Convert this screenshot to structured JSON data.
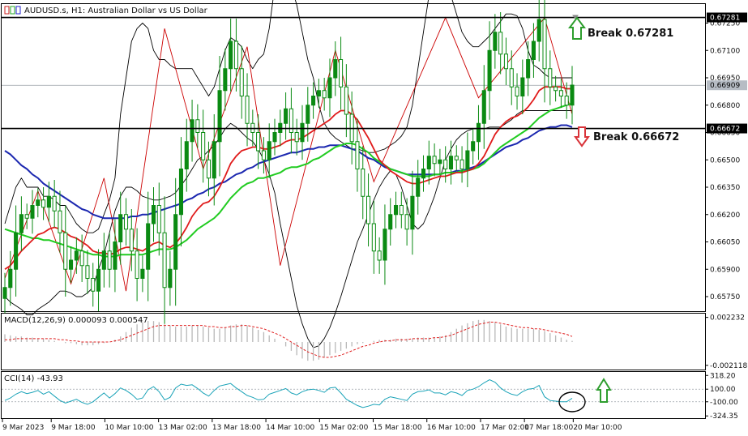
{
  "chart_data": {
    "type": "candlestick",
    "title": "AUDUSD.s, H1: Australian Dollar vs US Dollar",
    "main": {
      "ylim": [
        0.6567,
        0.6735
      ],
      "y_ticks": [
        "0.67250",
        "0.67100",
        "0.66950",
        "0.66800",
        "0.66650",
        "0.66500",
        "0.66350",
        "0.66200",
        "0.66050",
        "0.65900",
        "0.65750"
      ],
      "price_markers": [
        {
          "label": "0.67281",
          "value": 0.67281,
          "style": "line"
        },
        {
          "label": "0.66909",
          "value": 0.66909,
          "style": "current"
        },
        {
          "label": "0.66672",
          "value": 0.66672,
          "style": "line"
        }
      ],
      "annotations": [
        {
          "text": "Break 0.67281",
          "direction": "up",
          "color": "#2e9e2e"
        },
        {
          "text": "Break 0.66672",
          "direction": "down",
          "color": "#d9343a"
        }
      ],
      "close": [
        0.658,
        0.659,
        0.661,
        0.662,
        0.6618,
        0.6625,
        0.6628,
        0.6624,
        0.663,
        0.6622,
        0.661,
        0.659,
        0.6595,
        0.66,
        0.6592,
        0.6585,
        0.6578,
        0.659,
        0.66,
        0.659,
        0.6605,
        0.662,
        0.6612,
        0.66,
        0.6585,
        0.659,
        0.6615,
        0.6625,
        0.661,
        0.658,
        0.659,
        0.662,
        0.6645,
        0.666,
        0.6672,
        0.6665,
        0.665,
        0.664,
        0.666,
        0.6688,
        0.67,
        0.6715,
        0.67,
        0.6685,
        0.667,
        0.6665,
        0.6655,
        0.665,
        0.666,
        0.6665,
        0.667,
        0.6678,
        0.6665,
        0.666,
        0.667,
        0.668,
        0.6685,
        0.6688,
        0.6684,
        0.6695,
        0.6705,
        0.669,
        0.6675,
        0.666,
        0.6645,
        0.663,
        0.6615,
        0.66,
        0.6595,
        0.6612,
        0.662,
        0.6625,
        0.662,
        0.6612,
        0.663,
        0.664,
        0.6645,
        0.6652,
        0.6648,
        0.665,
        0.6645,
        0.6652,
        0.665,
        0.6645,
        0.6655,
        0.666,
        0.667,
        0.6688,
        0.671,
        0.672,
        0.6708,
        0.67,
        0.669,
        0.6685,
        0.6695,
        0.6705,
        0.6715,
        0.6727,
        0.67,
        0.669,
        0.6688,
        0.6685,
        0.668,
        0.6691
      ],
      "ema_red": [
        0.659,
        0.6592,
        0.6596,
        0.66,
        0.6603,
        0.6606,
        0.6609,
        0.661,
        0.6612,
        0.6613,
        0.6612,
        0.661,
        0.6608,
        0.6607,
        0.6605,
        0.6603,
        0.66,
        0.6599,
        0.6599,
        0.6598,
        0.6599,
        0.6601,
        0.6602,
        0.6602,
        0.6601,
        0.66,
        0.6602,
        0.6604,
        0.6605,
        0.6603,
        0.6602,
        0.6604,
        0.6608,
        0.6613,
        0.6619,
        0.6623,
        0.6626,
        0.6627,
        0.663,
        0.6635,
        0.6641,
        0.6648,
        0.6652,
        0.6655,
        0.6656,
        0.6657,
        0.6657,
        0.6656,
        0.6656,
        0.6657,
        0.6658,
        0.666,
        0.6661,
        0.6661,
        0.6662,
        0.6664,
        0.6666,
        0.6668,
        0.667,
        0.6672,
        0.6675,
        0.6677,
        0.6677,
        0.6675,
        0.6672,
        0.6667,
        0.6662,
        0.6656,
        0.665,
        0.6647,
        0.6644,
        0.6642,
        0.664,
        0.6638,
        0.6637,
        0.6637,
        0.6638,
        0.6639,
        0.664,
        0.6641,
        0.6641,
        0.6642,
        0.6643,
        0.6643,
        0.6644,
        0.6645,
        0.6648,
        0.6652,
        0.6658,
        0.6664,
        0.6668,
        0.6671,
        0.6673,
        0.6674,
        0.6676,
        0.6679,
        0.6683,
        0.6688,
        0.669,
        0.669,
        0.669,
        0.669,
        0.6689,
        0.6689
      ],
      "ema_green": [
        0.6612,
        0.6611,
        0.661,
        0.6609,
        0.6608,
        0.6607,
        0.6607,
        0.6606,
        0.6606,
        0.6605,
        0.6604,
        0.6603,
        0.6602,
        0.6601,
        0.66,
        0.6599,
        0.6598,
        0.6598,
        0.6597,
        0.6597,
        0.6597,
        0.6598,
        0.6598,
        0.6598,
        0.6598,
        0.6598,
        0.6599,
        0.66,
        0.6601,
        0.6601,
        0.6601,
        0.6602,
        0.6604,
        0.6606,
        0.6609,
        0.6612,
        0.6614,
        0.6616,
        0.6618,
        0.6621,
        0.6625,
        0.6629,
        0.6632,
        0.6635,
        0.6637,
        0.6638,
        0.664,
        0.664,
        0.6641,
        0.6642,
        0.6643,
        0.6645,
        0.6646,
        0.6646,
        0.6647,
        0.6648,
        0.665,
        0.6651,
        0.6653,
        0.6655,
        0.6657,
        0.6658,
        0.6659,
        0.6659,
        0.6658,
        0.6656,
        0.6654,
        0.6651,
        0.6649,
        0.6647,
        0.6645,
        0.6644,
        0.6643,
        0.6642,
        0.6641,
        0.6641,
        0.6641,
        0.6641,
        0.6642,
        0.6642,
        0.6643,
        0.6643,
        0.6643,
        0.6644,
        0.6644,
        0.6645,
        0.6646,
        0.6648,
        0.6651,
        0.6654,
        0.6657,
        0.6659,
        0.6661,
        0.6663,
        0.6665,
        0.6667,
        0.667,
        0.6673,
        0.6675,
        0.6677,
        0.6678,
        0.6679,
        0.668,
        0.6681
      ],
      "ema_blue": [
        0.6655,
        0.6653,
        0.665,
        0.6647,
        0.6645,
        0.6642,
        0.664,
        0.6637,
        0.6635,
        0.6633,
        0.6631,
        0.6629,
        0.6627,
        0.6625,
        0.6623,
        0.6622,
        0.662,
        0.6619,
        0.6618,
        0.6618,
        0.6618,
        0.6618,
        0.6618,
        0.6619,
        0.6619,
        0.662,
        0.662,
        0.6621,
        0.6622,
        0.6623,
        0.6624,
        0.6625,
        0.6626,
        0.6628,
        0.6629,
        0.6631,
        0.6632,
        0.6634,
        0.6635,
        0.6637,
        0.6638,
        0.664,
        0.6642,
        0.6643,
        0.6645,
        0.6646,
        0.6648,
        0.6649,
        0.665,
        0.6651,
        0.6652,
        0.6653,
        0.6654,
        0.6654,
        0.6655,
        0.6656,
        0.6656,
        0.6657,
        0.6657,
        0.6658,
        0.6658,
        0.6658,
        0.6657,
        0.6656,
        0.6655,
        0.6653,
        0.6651,
        0.665,
        0.6648,
        0.6646,
        0.6645,
        0.6644,
        0.6643,
        0.6642,
        0.6642,
        0.6642,
        0.6642,
        0.6642,
        0.6642,
        0.6642,
        0.6643,
        0.6643,
        0.6644,
        0.6644,
        0.6645,
        0.6646,
        0.6647,
        0.6649,
        0.6651,
        0.6653,
        0.6655,
        0.6657,
        0.6658,
        0.6659,
        0.6661,
        0.6662,
        0.6664,
        0.6666,
        0.6667,
        0.6668,
        0.6668,
        0.6669,
        0.6669,
        0.6668
      ],
      "bb_upper": [
        0.6615,
        0.6625,
        0.6635,
        0.664,
        0.6635,
        0.6635,
        0.6635,
        0.663,
        0.663,
        0.6628,
        0.6625,
        0.6625,
        0.662,
        0.6615,
        0.6612,
        0.661,
        0.661,
        0.6612,
        0.662,
        0.6628,
        0.664,
        0.6675,
        0.6695,
        0.6715,
        0.6722,
        0.6725,
        0.6722,
        0.671,
        0.6705,
        0.6705,
        0.6702,
        0.67,
        0.67,
        0.67,
        0.67,
        0.6695,
        0.669,
        0.6685,
        0.669,
        0.67,
        0.671,
        0.6717,
        0.6715,
        0.6712,
        0.6705,
        0.67,
        0.6705,
        0.6708,
        0.6722,
        0.6745,
        0.675,
        0.675,
        0.6745,
        0.6735,
        0.672,
        0.6705,
        0.6695,
        0.668,
        0.667,
        0.6665,
        0.6662,
        0.666,
        0.6658,
        0.6656,
        0.6656,
        0.6655,
        0.6654,
        0.6654,
        0.6655,
        0.6656,
        0.6658,
        0.666,
        0.6663,
        0.6668,
        0.668,
        0.67,
        0.672,
        0.674,
        0.675,
        0.6752,
        0.675,
        0.674,
        0.673,
        0.672,
        0.6715,
        0.6712,
        0.6712,
        0.6715,
        0.6718,
        0.6722,
        0.6726,
        0.673,
        0.673,
        0.6729,
        0.6722,
        0.671,
        0.6702,
        0.67,
        0.6697,
        0.6695,
        0.6695,
        0.6695,
        0.6695,
        0.6695
      ],
      "bb_lower": [
        0.6575,
        0.6572,
        0.657,
        0.6568,
        0.6565,
        0.6565,
        0.6568,
        0.657,
        0.6572,
        0.6575,
        0.6578,
        0.6578,
        0.6577,
        0.6575,
        0.6575,
        0.6577,
        0.658,
        0.659,
        0.6598,
        0.661,
        0.6622,
        0.663,
        0.6635,
        0.6635,
        0.6633,
        0.663,
        0.6629,
        0.6628,
        0.6628,
        0.6629,
        0.663,
        0.6632,
        0.6636,
        0.664,
        0.6645,
        0.665,
        0.6652,
        0.6655,
        0.6658,
        0.6662,
        0.6667,
        0.667,
        0.6668,
        0.6665,
        0.6662,
        0.666,
        0.6656,
        0.665,
        0.6642,
        0.6632,
        0.6615,
        0.66,
        0.6585,
        0.657,
        0.656,
        0.6552,
        0.6547,
        0.6548,
        0.6552,
        0.6558,
        0.6566,
        0.6575,
        0.6585,
        0.6595,
        0.6605,
        0.6612,
        0.662,
        0.6628,
        0.6635,
        0.664,
        0.6644,
        0.6642,
        0.6635,
        0.6625,
        0.6615,
        0.6612,
        0.6615,
        0.6622,
        0.663,
        0.664,
        0.665,
        0.6656,
        0.6661,
        0.6664,
        0.6666,
        0.6667,
        0.6667,
        0.6667,
        0.6668,
        0.6668,
        0.6668,
        0.667,
        0.6672,
        0.6675,
        0.6677,
        0.6677,
        0.6677,
        0.6677,
        0.6677,
        0.6677,
        0.6677,
        0.6677,
        0.6677,
        0.6677
      ],
      "zigzag": [
        [
          0,
          0.6585
        ],
        [
          6,
          0.6633
        ],
        [
          12,
          0.6582
        ],
        [
          18,
          0.664
        ],
        [
          22,
          0.6578
        ],
        [
          29,
          0.6722
        ],
        [
          36,
          0.6645
        ],
        [
          44,
          0.6712
        ],
        [
          50,
          0.6592
        ],
        [
          60,
          0.671
        ],
        [
          67,
          0.6638
        ],
        [
          80,
          0.6728
        ],
        [
          86,
          0.6684
        ],
        [
          98,
          0.6728
        ],
        [
          103,
          0.6675
        ]
      ]
    },
    "macd": {
      "label": "MACD(12,26,9) 0.000093 0.000547",
      "ylim": [
        -0.0025,
        0.0025
      ],
      "y_ticks": [
        "0.002232",
        "-0.002118"
      ],
      "histogram": [
        0.0007,
        0.0006,
        0.0005,
        0.0005,
        0.0004,
        0.0004,
        0.0003,
        0.0003,
        0.0002,
        0.0001,
        0.0,
        -0.0001,
        -0.0001,
        -0.0002,
        -0.0003,
        -0.0003,
        -0.0003,
        -0.0002,
        -0.0001,
        0.0,
        0.0002,
        0.0005,
        0.0009,
        0.0013,
        0.0016,
        0.0018,
        0.0019,
        0.0019,
        0.0018,
        0.0016,
        0.0015,
        0.0014,
        0.0014,
        0.0014,
        0.0015,
        0.0015,
        0.0014,
        0.0013,
        0.0012,
        0.0012,
        0.0013,
        0.0015,
        0.0016,
        0.0016,
        0.0015,
        0.0013,
        0.0011,
        0.0009,
        0.0006,
        0.0003,
        0.0,
        -0.0004,
        -0.0008,
        -0.0012,
        -0.0015,
        -0.0017,
        -0.0017,
        -0.0016,
        -0.0014,
        -0.0012,
        -0.001,
        -0.0008,
        -0.0006,
        -0.0004,
        -0.0002,
        -0.0001,
        0.0,
        0.0001,
        0.0002,
        0.0002,
        0.0002,
        0.0003,
        0.0003,
        0.0003,
        0.0003,
        0.0004,
        0.0004,
        0.0004,
        0.0004,
        0.0005,
        0.0006,
        0.0009,
        0.0012,
        0.0015,
        0.0017,
        0.0019,
        0.002,
        0.002,
        0.0019,
        0.0018,
        0.0016,
        0.0014,
        0.0013,
        0.0012,
        0.0012,
        0.0012,
        0.0012,
        0.0011,
        0.001,
        0.0008,
        0.0006,
        0.0004,
        0.0002,
        0.0001
      ],
      "signal": [
        0.0002,
        0.0002,
        0.0003,
        0.0003,
        0.0003,
        0.0003,
        0.0003,
        0.0003,
        0.0003,
        0.0003,
        0.0002,
        0.0002,
        0.0001,
        0.0001,
        0.0,
        0.0,
        0.0,
        0.0,
        0.0,
        0.0,
        0.0001,
        0.0002,
        0.0004,
        0.0006,
        0.0008,
        0.001,
        0.0012,
        0.0014,
        0.0015,
        0.0015,
        0.0015,
        0.0015,
        0.0015,
        0.0015,
        0.0015,
        0.0015,
        0.0015,
        0.0014,
        0.0014,
        0.0013,
        0.0013,
        0.0014,
        0.0014,
        0.0015,
        0.0015,
        0.0014,
        0.0013,
        0.0012,
        0.001,
        0.0008,
        0.0006,
        0.0003,
        0.0,
        -0.0003,
        -0.0006,
        -0.0009,
        -0.0011,
        -0.0013,
        -0.0014,
        -0.0014,
        -0.0013,
        -0.0012,
        -0.001,
        -0.0008,
        -0.0006,
        -0.0004,
        -0.0003,
        -0.0001,
        0.0,
        0.0001,
        0.0001,
        0.0002,
        0.0002,
        0.0002,
        0.0003,
        0.0003,
        0.0003,
        0.0003,
        0.0004,
        0.0004,
        0.0005,
        0.0006,
        0.0008,
        0.001,
        0.0012,
        0.0014,
        0.0016,
        0.0017,
        0.0018,
        0.0018,
        0.0017,
        0.0016,
        0.0015,
        0.0014,
        0.0013,
        0.0013,
        0.0012,
        0.0012,
        0.0011,
        0.001,
        0.0009,
        0.0008,
        0.0007,
        0.0005
      ]
    },
    "cci": {
      "label": "CCI(14) -43.93",
      "ylim": [
        -360,
        360
      ],
      "y_ticks": [
        {
          "label": "318.20",
          "value": 318.2
        },
        {
          "label": "100.00",
          "value": 100
        },
        {
          "label": "-100.00",
          "value": -100
        },
        {
          "label": "-324.35",
          "value": -324.35
        }
      ],
      "values": [
        -80,
        -40,
        20,
        60,
        30,
        50,
        80,
        20,
        60,
        -10,
        -80,
        -120,
        -90,
        -60,
        -110,
        -140,
        -100,
        -30,
        40,
        -40,
        30,
        120,
        80,
        20,
        -60,
        -40,
        90,
        140,
        60,
        -70,
        -30,
        120,
        180,
        160,
        170,
        110,
        40,
        -10,
        80,
        150,
        170,
        190,
        120,
        60,
        0,
        -30,
        -70,
        -60,
        20,
        50,
        80,
        110,
        40,
        10,
        60,
        90,
        100,
        80,
        50,
        120,
        130,
        40,
        -60,
        -110,
        -160,
        -190,
        -170,
        -140,
        -150,
        -60,
        -20,
        -40,
        -60,
        -80,
        20,
        60,
        70,
        90,
        40,
        40,
        10,
        60,
        40,
        0,
        80,
        100,
        140,
        200,
        250,
        210,
        120,
        60,
        20,
        0,
        60,
        100,
        110,
        160,
        -20,
        -80,
        -90,
        -100,
        -100,
        -44
      ]
    },
    "x_axis_labels": [
      "9 Mar 2023",
      "9 Mar 18:00",
      "10 Mar 10:00",
      "13 Mar 02:00",
      "13 Mar 18:00",
      "14 Mar 10:00",
      "15 Mar 02:00",
      "15 Mar 18:00",
      "16 Mar 10:00",
      "17 Mar 02:00",
      "17 Mar 18:00",
      "20 Mar 10:00"
    ],
    "x_axis_label_index": [
      0,
      10,
      21,
      32,
      43,
      54,
      65,
      76,
      87,
      98,
      107,
      117
    ],
    "colors": {
      "ema_red": "#e01b1b",
      "ema_green": "#22cc22",
      "ema_blue": "#1c28b0",
      "bollinger": "#000000",
      "zigzag": "#cc0000",
      "candle": "#0a8a12",
      "macd_hist": "#b8b8b8",
      "macd_signal": "#e02020",
      "cci_line": "#1aa3b8",
      "arrow_up": "#2e9e2e",
      "arrow_down": "#d9343a"
    }
  }
}
